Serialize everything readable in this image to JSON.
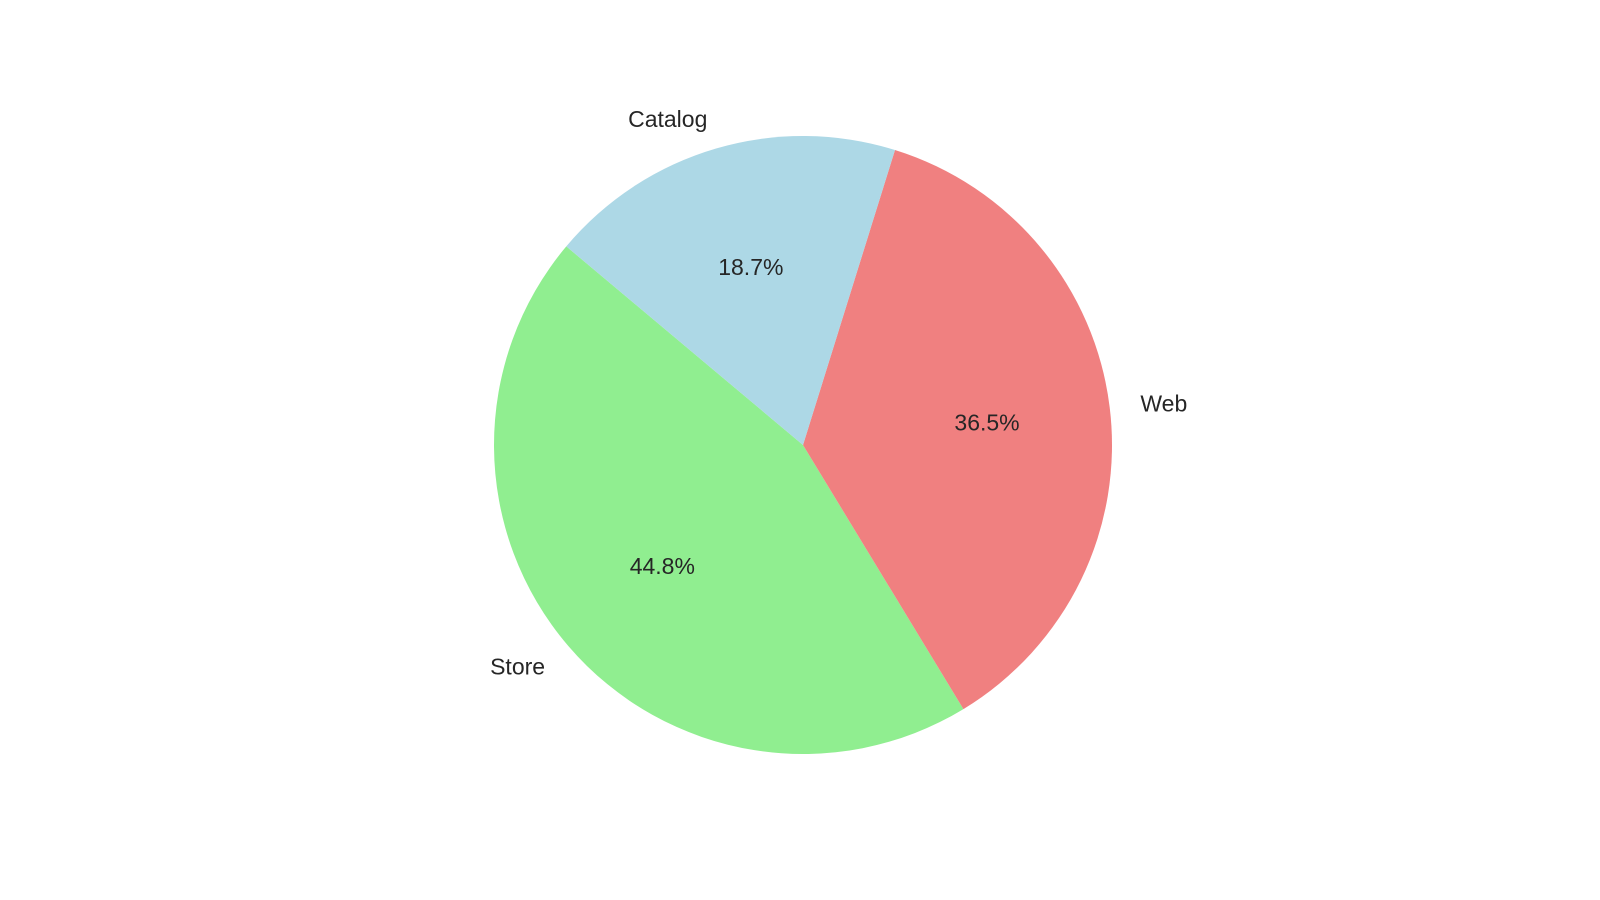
{
  "chart_data": {
    "type": "pie",
    "title": "",
    "categories": [
      "Store",
      "Web",
      "Catalog"
    ],
    "values": [
      44.8,
      36.5,
      18.7
    ],
    "percent_labels": [
      "44.8%",
      "36.5%",
      "18.7%"
    ],
    "colors": [
      "#90ee90",
      "#f08080",
      "#add8e6"
    ],
    "start_angle_deg": 140,
    "direction": "counterclockwise",
    "legend": "none"
  }
}
